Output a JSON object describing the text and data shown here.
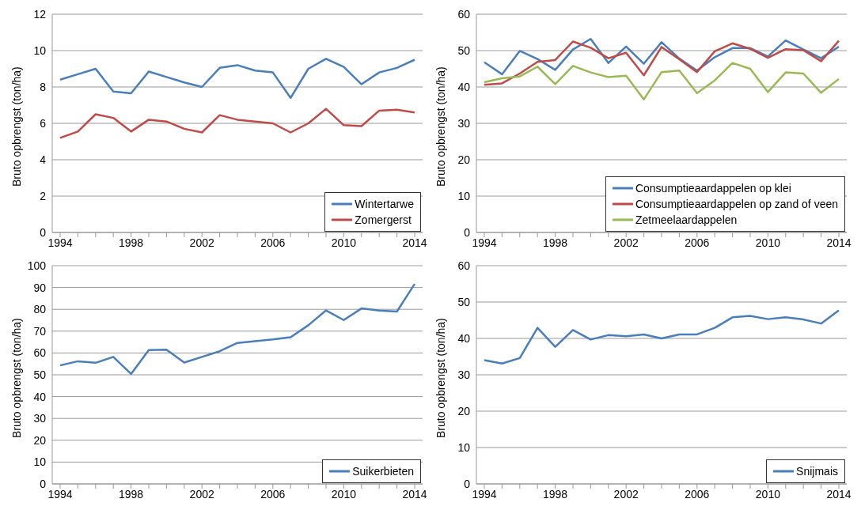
{
  "chart_data": [
    {
      "type": "line",
      "ylabel": "Bruto opbrengst (ton/ha)",
      "categories": [
        "1994",
        null,
        null,
        null,
        "1998",
        null,
        null,
        null,
        "2002",
        null,
        null,
        null,
        "2006",
        null,
        null,
        null,
        "2010",
        null,
        null,
        null,
        "2014"
      ],
      "ylim": [
        0,
        12
      ],
      "yticks": [
        0,
        2,
        4,
        6,
        8,
        10,
        12
      ],
      "grid": "y",
      "legend": "bottom right",
      "series": [
        {
          "name": "Wintertarwe",
          "color": "#4a7ebb",
          "values": [
            8.4,
            8.7,
            9.0,
            7.75,
            7.65,
            8.85,
            8.55,
            8.25,
            8.0,
            9.05,
            9.2,
            8.9,
            8.8,
            7.4,
            9.0,
            9.55,
            9.1,
            8.15,
            8.8,
            9.05,
            9.5
          ]
        },
        {
          "name": "Zomergerst",
          "color": "#be4b48",
          "values": [
            5.2,
            5.55,
            6.5,
            6.3,
            5.55,
            6.2,
            6.1,
            5.7,
            5.5,
            6.45,
            6.2,
            6.1,
            6.0,
            5.5,
            6.0,
            6.8,
            5.9,
            5.85,
            6.7,
            6.75,
            6.6
          ]
        }
      ]
    },
    {
      "type": "line",
      "ylabel": "Bruto opbrengst (ton/ha)",
      "categories": [
        "1994",
        null,
        null,
        null,
        "1998",
        null,
        null,
        null,
        "2002",
        null,
        null,
        null,
        "2006",
        null,
        null,
        null,
        "2010",
        null,
        null,
        null,
        "2014"
      ],
      "ylim": [
        0,
        60
      ],
      "yticks": [
        0,
        10,
        20,
        30,
        40,
        50,
        60
      ],
      "grid": "y",
      "legend": "bottom right",
      "series": [
        {
          "name": "Consumptieaardappelen op klei",
          "color": "#4a7ebb",
          "values": [
            46.8,
            43.5,
            49.9,
            47.7,
            44.7,
            50.3,
            53.2,
            46.6,
            51.1,
            46.4,
            52.3,
            47.8,
            44.5,
            48.2,
            50.7,
            50.7,
            48.4,
            52.8,
            50.3,
            47.9,
            51.1
          ]
        },
        {
          "name": "Consumptieaardappelen op zand of veen",
          "color": "#be4b48",
          "values": [
            40.6,
            41.0,
            43.7,
            46.9,
            47.4,
            52.5,
            50.8,
            47.9,
            49.4,
            43.2,
            51.0,
            47.6,
            44.1,
            49.8,
            52.0,
            50.5,
            48.0,
            50.4,
            50.1,
            47.1,
            52.7
          ]
        },
        {
          "name": "Zetmeelaardappelen",
          "color": "#98b954",
          "values": [
            41.3,
            42.4,
            42.9,
            45.6,
            40.8,
            45.8,
            44.0,
            42.7,
            43.1,
            36.6,
            44.1,
            44.5,
            38.3,
            41.8,
            46.6,
            45.0,
            38.6,
            44.0,
            43.7,
            38.4,
            42.2
          ]
        }
      ]
    },
    {
      "type": "line",
      "ylabel": "Bruto opbrengst (ton/ha)",
      "categories": [
        "1994",
        null,
        null,
        null,
        "1998",
        null,
        null,
        null,
        "2002",
        null,
        null,
        null,
        "2006",
        null,
        null,
        null,
        "2010",
        null,
        null,
        null,
        "2014"
      ],
      "ylim": [
        0,
        100
      ],
      "yticks": [
        0,
        10,
        20,
        30,
        40,
        50,
        60,
        70,
        80,
        90,
        100
      ],
      "grid": "y",
      "legend": "bottom right",
      "series": [
        {
          "name": "Suikerbieten",
          "color": "#4a7ebb",
          "values": [
            54.3,
            56.2,
            55.5,
            58.2,
            50.4,
            61.3,
            61.5,
            55.6,
            58.2,
            60.8,
            64.6,
            65.4,
            66.2,
            67.2,
            72.7,
            79.5,
            75.1,
            80.4,
            79.4,
            79.0,
            91.6
          ]
        }
      ]
    },
    {
      "type": "line",
      "ylabel": "Bruto opbrengst (ton/ha)",
      "categories": [
        "1994",
        null,
        null,
        null,
        "1998",
        null,
        null,
        null,
        "2002",
        null,
        null,
        null,
        "2006",
        null,
        null,
        null,
        "2010",
        null,
        null,
        null,
        "2014"
      ],
      "ylim": [
        0,
        60
      ],
      "yticks": [
        0,
        10,
        20,
        30,
        40,
        50,
        60
      ],
      "grid": "y",
      "legend": "bottom right",
      "series": [
        {
          "name": "Snijmais",
          "color": "#4a7ebb",
          "values": [
            34.0,
            33.1,
            34.6,
            42.9,
            37.7,
            42.3,
            39.7,
            40.9,
            40.6,
            41.1,
            40.0,
            41.1,
            41.1,
            42.9,
            45.8,
            46.2,
            45.3,
            45.8,
            45.2,
            44.1,
            47.7
          ]
        }
      ]
    }
  ]
}
